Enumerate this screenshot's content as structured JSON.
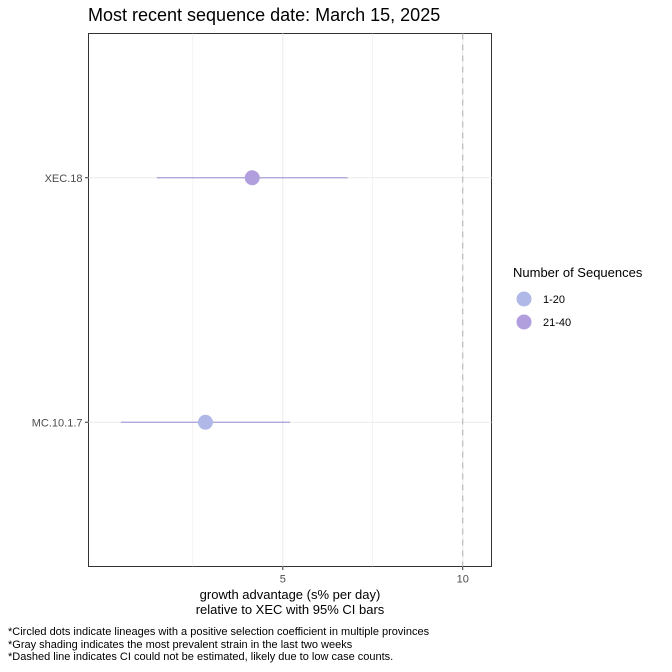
{
  "chart_data": {
    "type": "scatter",
    "title": "Most recent sequence date: March 15, 2025",
    "xlabel_lines": [
      "growth advantage (s% per day)",
      "relative to  XEC  with 95% CI bars"
    ],
    "ylabel": "",
    "xlim": [
      -0.4,
      10.8
    ],
    "x_ticks": [
      5,
      10
    ],
    "x_minor_gridlines": [
      2.5,
      7.5
    ],
    "reference_line": {
      "x": 10,
      "style": "dashed"
    },
    "categories": [
      "XEC.18",
      "MC.10.1.7"
    ],
    "points": [
      {
        "lineage": "XEC.18",
        "estimate": 4.15,
        "ci_low": 1.5,
        "ci_high": 6.8,
        "seq_group": "21-40"
      },
      {
        "lineage": "MC.10.1.7",
        "estimate": 2.85,
        "ci_low": 0.5,
        "ci_high": 5.2,
        "seq_group": "1-20"
      }
    ],
    "legend": {
      "title": "Number of Sequences",
      "placement": "right",
      "items": [
        {
          "label": "1-20",
          "color": "#b0b8e8"
        },
        {
          "label": "21-40",
          "color": "#b09fdc"
        }
      ]
    },
    "ci_color": "#a89fd8",
    "grid": true
  },
  "footnotes": [
    "*Circled dots indicate lineages with a positive selection coefficient in multiple provinces",
    "*Gray shading indicates the most prevalent strain in the last two weeks",
    "*Dashed line indicates CI could not be estimated, likely due to low case counts."
  ]
}
